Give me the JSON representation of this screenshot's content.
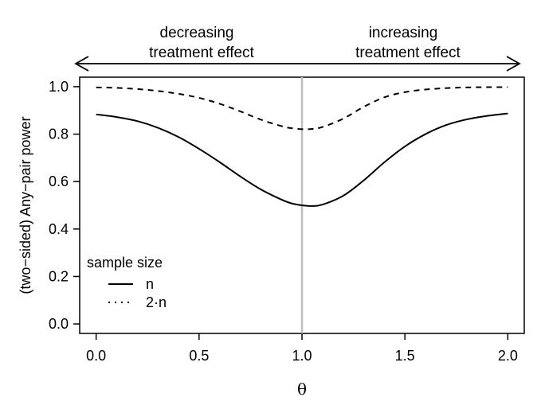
{
  "chart_data": {
    "type": "line",
    "xlabel": "θ",
    "ylabel": "(two−sided) Any−pair power",
    "xlim": [
      -0.08,
      2.08
    ],
    "ylim": [
      -0.04,
      1.04
    ],
    "x_ticks": [
      "0.0",
      "0.5",
      "1.0",
      "1.5",
      "2.0"
    ],
    "y_ticks": [
      "0.0",
      "0.2",
      "0.4",
      "0.6",
      "0.8",
      "1.0"
    ],
    "reference_line_x": 1.0,
    "reference_line_color": "#bebebe",
    "legend": {
      "title": "sample size",
      "placement": "bottom-left"
    },
    "annotations": {
      "left_line1": "decreasing",
      "left_line2": "treatment effect",
      "right_line1": "increasing",
      "right_line2": "treatment effect"
    },
    "series": [
      {
        "name": "n",
        "style": "solid",
        "x": [
          0.0,
          0.1,
          0.2,
          0.3,
          0.4,
          0.5,
          0.6,
          0.7,
          0.8,
          0.9,
          0.95,
          1.0,
          1.05,
          1.1,
          1.2,
          1.3,
          1.4,
          1.5,
          1.6,
          1.7,
          1.8,
          1.9,
          2.0
        ],
        "y": [
          0.883,
          0.872,
          0.855,
          0.827,
          0.788,
          0.738,
          0.682,
          0.622,
          0.567,
          0.524,
          0.508,
          0.5,
          0.497,
          0.503,
          0.54,
          0.605,
          0.681,
          0.748,
          0.8,
          0.838,
          0.862,
          0.877,
          0.887
        ]
      },
      {
        "name": "2·n",
        "style": "dashed",
        "x": [
          0.0,
          0.1,
          0.2,
          0.3,
          0.4,
          0.5,
          0.6,
          0.7,
          0.8,
          0.9,
          0.95,
          1.0,
          1.05,
          1.1,
          1.2,
          1.3,
          1.4,
          1.5,
          1.6,
          1.7,
          1.8,
          1.9,
          2.0
        ],
        "y": [
          0.997,
          0.995,
          0.99,
          0.982,
          0.97,
          0.953,
          0.928,
          0.896,
          0.861,
          0.834,
          0.825,
          0.821,
          0.822,
          0.83,
          0.865,
          0.915,
          0.955,
          0.977,
          0.988,
          0.994,
          0.997,
          0.998,
          0.998
        ]
      }
    ]
  }
}
